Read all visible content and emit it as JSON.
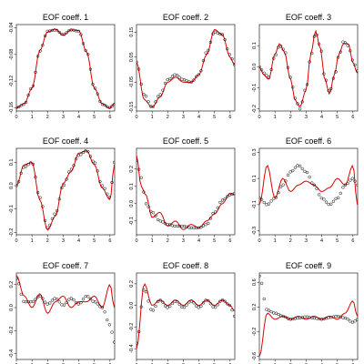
{
  "chart_data": [
    {
      "type": "line",
      "title": "EOF coeff. 1",
      "xlim": [
        0,
        6.3
      ],
      "ylim": [
        -0.165,
        -0.035
      ],
      "xticks": [
        0,
        1,
        2,
        3,
        4,
        5,
        6
      ],
      "yticks": [
        -0.16,
        -0.12,
        -0.08,
        -0.04
      ],
      "x": [
        0,
        0.5,
        1.0,
        1.5,
        2.0,
        2.5,
        3.0,
        3.5,
        4.0,
        4.5,
        5.0,
        5.5,
        6.0,
        6.28
      ],
      "smooth": [
        -0.16,
        -0.155,
        -0.13,
        -0.075,
        -0.045,
        -0.043,
        -0.05,
        -0.043,
        -0.045,
        -0.075,
        -0.13,
        -0.155,
        -0.16,
        -0.155
      ],
      "data": [
        -0.16,
        -0.154,
        -0.131,
        -0.074,
        -0.046,
        -0.042,
        -0.051,
        -0.043,
        -0.044,
        -0.076,
        -0.131,
        -0.154,
        -0.161,
        -0.153
      ]
    },
    {
      "type": "line",
      "title": "EOF coeff. 2",
      "xlim": [
        0,
        6.3
      ],
      "ylim": [
        -0.165,
        0.18
      ],
      "xticks": [
        0,
        1,
        2,
        3,
        4,
        5,
        6
      ],
      "yticks": [
        -0.15,
        -0.05,
        0.05,
        0.15
      ],
      "x": [
        0,
        0.5,
        1.0,
        1.5,
        2.0,
        2.5,
        3.0,
        3.5,
        4.0,
        4.5,
        5.0,
        5.5,
        6.0,
        6.28
      ],
      "smooth": [
        0.03,
        -0.1,
        -0.15,
        -0.1,
        -0.04,
        -0.02,
        -0.04,
        -0.05,
        -0.02,
        0.07,
        0.15,
        0.14,
        0.06,
        0.02
      ],
      "data": [
        0.03,
        -0.12,
        -0.15,
        -0.11,
        -0.05,
        -0.03,
        -0.05,
        -0.05,
        -0.02,
        0.06,
        0.16,
        0.14,
        0.05,
        0.02
      ]
    },
    {
      "type": "line",
      "title": "EOF coeff. 3",
      "xlim": [
        0,
        6.3
      ],
      "ylim": [
        -0.21,
        0.2
      ],
      "xticks": [
        0,
        1,
        2,
        3,
        4,
        5,
        6
      ],
      "yticks": [
        -0.2,
        -0.1,
        0.0,
        0.1
      ],
      "x": [
        0,
        0.3,
        0.6,
        1.0,
        1.3,
        1.6,
        2.0,
        2.3,
        2.6,
        3.0,
        3.3,
        3.6,
        3.9,
        4.2,
        4.5,
        4.8,
        5.1,
        5.4,
        5.7,
        6.0,
        6.28
      ],
      "smooth": [
        0.0,
        -0.03,
        -0.05,
        0.05,
        0.1,
        0.08,
        -0.05,
        -0.15,
        -0.2,
        -0.1,
        0.05,
        0.16,
        0.1,
        -0.05,
        -0.12,
        -0.05,
        0.05,
        0.12,
        0.1,
        0.03,
        -0.02
      ],
      "data": [
        0.0,
        -0.04,
        -0.06,
        0.06,
        0.11,
        0.07,
        -0.06,
        -0.16,
        -0.19,
        -0.11,
        0.06,
        0.17,
        0.09,
        -0.06,
        -0.13,
        -0.04,
        0.06,
        0.11,
        0.11,
        0.02,
        -0.03
      ]
    },
    {
      "type": "line",
      "title": "EOF coeff. 4",
      "xlim": [
        0,
        6.3
      ],
      "ylim": [
        -0.21,
        0.16
      ],
      "xticks": [
        0,
        1,
        2,
        3,
        4,
        5,
        6
      ],
      "yticks": [
        -0.2,
        -0.1,
        0.0,
        0.1
      ],
      "x": [
        0,
        0.5,
        1.0,
        1.5,
        2.0,
        2.5,
        3.0,
        3.5,
        4.0,
        4.5,
        5.0,
        5.5,
        6.0,
        6.28
      ],
      "smooth": [
        0.0,
        0.08,
        0.1,
        -0.05,
        -0.18,
        -0.12,
        0.0,
        0.07,
        0.13,
        0.15,
        0.1,
        0.0,
        -0.05,
        0.1
      ],
      "data": [
        0.0,
        0.09,
        0.1,
        -0.06,
        -0.19,
        -0.13,
        0.01,
        0.06,
        0.14,
        0.15,
        0.09,
        -0.01,
        -0.06,
        0.09
      ]
    },
    {
      "type": "line",
      "title": "EOF coeff. 5",
      "xlim": [
        0,
        6.3
      ],
      "ylim": [
        -0.18,
        0.32
      ],
      "xticks": [
        0,
        1,
        2,
        3,
        4,
        5,
        6
      ],
      "yticks": [
        -0.1,
        0.0,
        0.1,
        0.2
      ],
      "x": [
        0,
        0.3,
        0.6,
        1.0,
        1.5,
        2.0,
        2.5,
        3.0,
        3.5,
        4.0,
        4.5,
        5.0,
        5.5,
        6.0,
        6.28
      ],
      "smooth": [
        0.25,
        0.15,
        0.0,
        -0.05,
        -0.1,
        -0.12,
        -0.13,
        -0.13,
        -0.14,
        -0.14,
        -0.12,
        -0.05,
        0.02,
        0.05,
        0.06
      ],
      "data": [
        0.28,
        0.1,
        0.05,
        -0.08,
        -0.05,
        -0.13,
        -0.1,
        -0.15,
        -0.12,
        -0.14,
        -0.1,
        -0.06,
        0.0,
        0.06,
        0.05
      ]
    },
    {
      "type": "line",
      "title": "EOF coeff. 6",
      "xlim": [
        0,
        6.3
      ],
      "ylim": [
        -0.33,
        0.33
      ],
      "xticks": [
        0,
        1,
        2,
        3,
        4,
        5,
        6
      ],
      "yticks": [
        -0.3,
        -0.1,
        0.1,
        0.3
      ],
      "x": [
        0,
        0.5,
        1.0,
        1.5,
        2.0,
        2.5,
        3.0,
        3.5,
        4.0,
        4.5,
        5.0,
        5.5,
        6.0,
        6.28
      ],
      "smooth": [
        -0.05,
        -0.1,
        -0.05,
        0.05,
        0.15,
        0.2,
        0.15,
        0.05,
        -0.05,
        -0.1,
        -0.05,
        0.05,
        0.1,
        0.05
      ],
      "data": [
        -0.1,
        0.2,
        -0.05,
        0.1,
        0.0,
        0.05,
        0.08,
        0.05,
        0.0,
        0.03,
        0.1,
        0.05,
        0.2,
        -0.1
      ]
    },
    {
      "type": "line",
      "title": "EOF coeff. 7",
      "xlim": [
        0,
        6.3
      ],
      "ylim": [
        -0.45,
        0.3
      ],
      "xticks": [
        0,
        1,
        2,
        3,
        4,
        5,
        6
      ],
      "yticks": [
        -0.4,
        -0.2,
        0.0,
        0.2
      ],
      "x": [
        0,
        0.5,
        1.0,
        1.5,
        2.0,
        2.5,
        3.0,
        3.5,
        4.0,
        4.5,
        5.0,
        5.5,
        6.0,
        6.28
      ],
      "smooth": [
        0.25,
        0.05,
        0.05,
        0.1,
        0.03,
        0.08,
        0.02,
        0.08,
        0.03,
        0.1,
        0.05,
        0.0,
        -0.15,
        -0.3
      ],
      "data": [
        0.28,
        0.1,
        0.0,
        0.12,
        -0.05,
        0.05,
        0.1,
        0.0,
        0.05,
        0.05,
        0.1,
        0.0,
        0.2,
        0.0
      ]
    },
    {
      "type": "line",
      "title": "EOF coeff. 8",
      "xlim": [
        0,
        6.3
      ],
      "ylim": [
        -0.5,
        0.3
      ],
      "xticks": [
        0,
        1,
        2,
        3,
        4,
        5,
        6
      ],
      "yticks": [
        -0.4,
        -0.2,
        0.0,
        0.2
      ],
      "x": [
        0,
        0.5,
        1.0,
        1.5,
        2.0,
        2.5,
        3.0,
        3.5,
        4.0,
        4.5,
        5.0,
        5.5,
        6.0,
        6.28
      ],
      "smooth": [
        -0.35,
        0.15,
        -0.05,
        0.05,
        -0.02,
        0.04,
        -0.02,
        0.04,
        -0.02,
        0.05,
        -0.02,
        0.05,
        0.0,
        -0.1
      ],
      "data": [
        -0.4,
        0.2,
        0.0,
        0.05,
        0.0,
        0.05,
        0.0,
        0.05,
        0.0,
        0.05,
        0.0,
        0.05,
        0.0,
        -0.05
      ]
    },
    {
      "type": "line",
      "title": "EOF coeff. 9",
      "xlim": [
        0,
        6.3
      ],
      "ylim": [
        -0.65,
        0.75
      ],
      "xticks": [
        0,
        1,
        2,
        3,
        4,
        5,
        6
      ],
      "yticks": [
        -0.6,
        -0.2,
        0.2,
        0.6
      ],
      "x": [
        0,
        0.5,
        1.0,
        1.5,
        2.0,
        2.5,
        3.0,
        3.5,
        4.0,
        4.5,
        5.0,
        5.5,
        6.0,
        6.28
      ],
      "smooth": [
        0.7,
        0.15,
        0.1,
        0.05,
        0.0,
        0.02,
        0.04,
        0.02,
        0.0,
        0.03,
        0.05,
        0.02,
        -0.05,
        0.0
      ],
      "data": [
        -0.6,
        0.1,
        0.0,
        0.05,
        0.0,
        0.05,
        0.0,
        0.05,
        0.0,
        0.05,
        0.0,
        0.1,
        0.3,
        0.05
      ]
    }
  ],
  "colors": {
    "data_line": "#dd0000",
    "smooth_points": "#000000",
    "axis": "#000000"
  }
}
